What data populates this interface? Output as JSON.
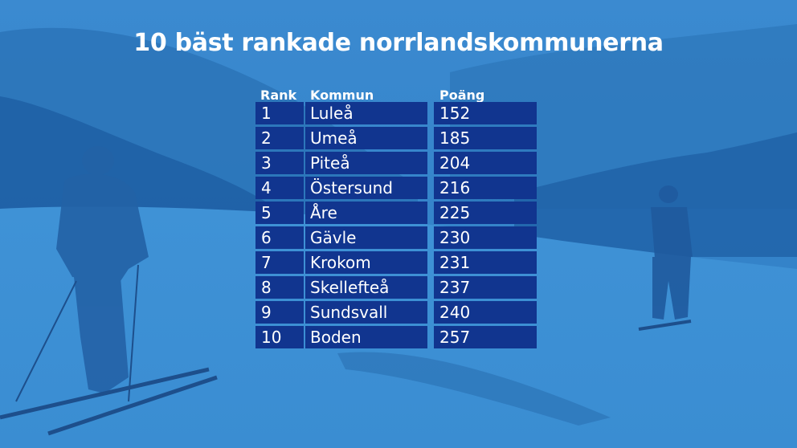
{
  "title": "10 bäst rankade norrlandskommunerna",
  "colors": {
    "background": "#2f7fc4",
    "cell": "#11358f",
    "text": "#ffffff"
  },
  "table": {
    "headers": {
      "rank": "Rank",
      "kommun": "Kommun",
      "poang": "Poäng"
    },
    "rows": [
      {
        "rank": "1",
        "kommun": "Luleå",
        "poang": "152"
      },
      {
        "rank": "2",
        "kommun": "Umeå",
        "poang": "185"
      },
      {
        "rank": "3",
        "kommun": "Piteå",
        "poang": "204"
      },
      {
        "rank": "4",
        "kommun": "Östersund",
        "poang": "216"
      },
      {
        "rank": "5",
        "kommun": "Åre",
        "poang": "225"
      },
      {
        "rank": "6",
        "kommun": "Gävle",
        "poang": "230"
      },
      {
        "rank": "7",
        "kommun": "Krokom",
        "poang": "231"
      },
      {
        "rank": "8",
        "kommun": "Skellefteå",
        "poang": "237"
      },
      {
        "rank": "9",
        "kommun": "Sundsvall",
        "poang": "240"
      },
      {
        "rank": "10",
        "kommun": "Boden",
        "poang": "257"
      }
    ]
  }
}
